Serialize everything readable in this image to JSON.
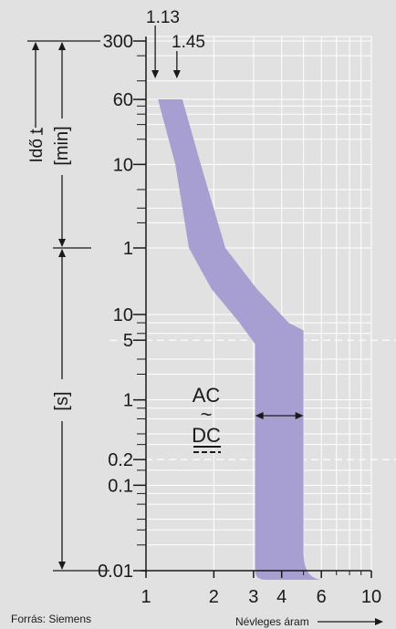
{
  "chart_data": {
    "type": "area",
    "title": "",
    "xlabel": "Névleges áram",
    "ylabel": "Idő t",
    "x_scale": "log",
    "xlim": [
      1,
      10
    ],
    "x_ticks": [
      1,
      2,
      3,
      4,
      6,
      10
    ],
    "y_min_ticks": [
      "300",
      "60",
      "10",
      "1"
    ],
    "y_s_ticks": [
      "10",
      "5",
      "1",
      "0.2",
      "0.1",
      "0.01"
    ],
    "unit_min": "[min]",
    "unit_s": "[s]",
    "markers": [
      "1.13",
      "1.45"
    ],
    "ac_label": "AC",
    "ac_symbol": "~",
    "dc_label": "DC",
    "grid": true,
    "fill_color": "#a79fd2",
    "background_color": "#e1e1e1",
    "band": {
      "left_edge": [
        [
          1.13,
          "60 min"
        ],
        [
          1.35,
          "10 min"
        ],
        [
          1.55,
          "1 min"
        ],
        [
          1.95,
          "20 s"
        ],
        [
          2.6,
          "8 s"
        ],
        [
          3.05,
          "4.5 s"
        ],
        [
          3.05,
          "0.01 s"
        ]
      ],
      "right_edge": [
        [
          1.45,
          "60 min"
        ],
        [
          1.75,
          "10 min"
        ],
        [
          2.25,
          "1 min"
        ],
        [
          3.1,
          "20 s"
        ],
        [
          4.3,
          "8 s"
        ],
        [
          5.0,
          "6.5 s"
        ],
        [
          5.0,
          "0.01 s"
        ]
      ]
    }
  },
  "source": "Forrás: Siemens"
}
